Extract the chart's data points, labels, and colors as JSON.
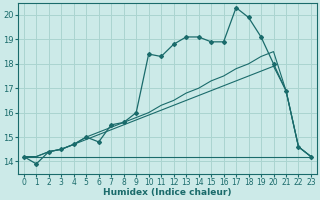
{
  "xlabel": "Humidex (Indice chaleur)",
  "xlim": [
    -0.5,
    23.5
  ],
  "ylim": [
    13.5,
    20.5
  ],
  "yticks": [
    14,
    15,
    16,
    17,
    18,
    19,
    20
  ],
  "xticks": [
    0,
    1,
    2,
    3,
    4,
    5,
    6,
    7,
    8,
    9,
    10,
    11,
    12,
    13,
    14,
    15,
    16,
    17,
    18,
    19,
    20,
    21,
    22,
    23
  ],
  "bg_color": "#cceae8",
  "grid_color": "#aad4d0",
  "line_color": "#1a6b6b",
  "main_y": [
    14.2,
    13.9,
    14.4,
    14.5,
    14.7,
    15.0,
    14.8,
    15.5,
    15.6,
    16.0,
    18.4,
    18.3,
    18.8,
    19.1,
    19.1,
    18.9,
    18.9,
    20.3,
    19.9,
    19.1,
    18.0,
    16.9,
    14.6,
    14.2
  ],
  "line2_y": [
    14.2,
    14.2,
    14.2,
    14.2,
    14.2,
    14.2,
    14.2,
    14.2,
    14.2,
    14.2,
    14.2,
    14.2,
    14.2,
    14.2,
    14.2,
    14.2,
    14.2,
    14.2,
    14.2,
    14.2,
    14.2,
    14.2,
    14.2,
    14.2
  ],
  "line3_y": [
    14.2,
    14.2,
    14.4,
    14.5,
    14.7,
    15.0,
    15.2,
    15.4,
    15.6,
    15.8,
    16.0,
    16.3,
    16.5,
    16.8,
    17.0,
    17.3,
    17.5,
    17.8,
    18.0,
    18.3,
    18.5,
    16.9,
    14.6,
    14.2
  ],
  "line4_y": [
    14.2,
    14.2,
    14.4,
    14.5,
    14.7,
    14.9,
    15.1,
    15.3,
    15.5,
    15.7,
    15.9,
    16.1,
    16.3,
    16.5,
    16.7,
    16.9,
    17.1,
    17.3,
    17.5,
    17.7,
    17.9,
    16.9,
    14.6,
    14.2
  ]
}
